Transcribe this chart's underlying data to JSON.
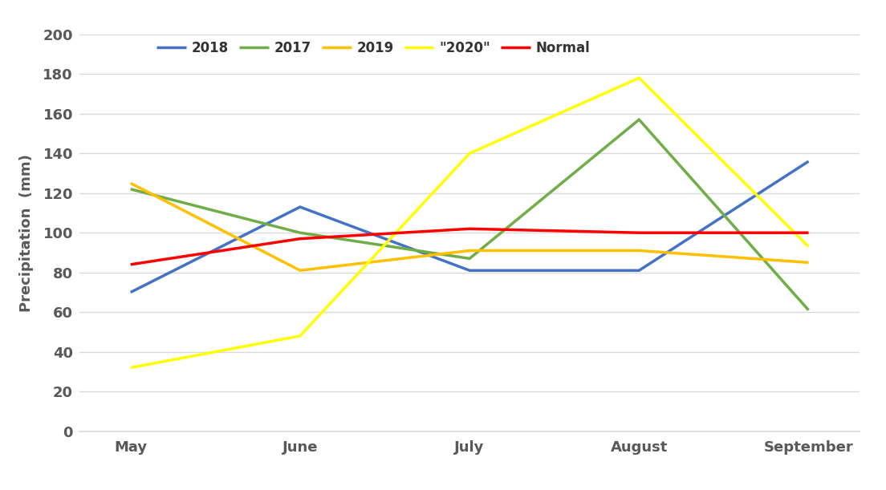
{
  "months": [
    "May",
    "June",
    "July",
    "August",
    "September"
  ],
  "series": {
    "2018": {
      "values": [
        70,
        113,
        81,
        81,
        136
      ],
      "color": "#4472C4",
      "linewidth": 2.5
    },
    "2017": {
      "values": [
        122,
        100,
        87,
        157,
        61
      ],
      "color": "#70AD47",
      "linewidth": 2.5
    },
    "2019": {
      "values": [
        125,
        81,
        91,
        91,
        85
      ],
      "color": "#FFC000",
      "linewidth": 2.5
    },
    "\"2020\"": {
      "values": [
        32,
        48,
        140,
        178,
        93
      ],
      "color": "#FFFF00",
      "linewidth": 2.5
    },
    "Normal": {
      "values": [
        84,
        97,
        102,
        100,
        100
      ],
      "color": "#FF0000",
      "linewidth": 2.5
    }
  },
  "legend_order": [
    "2018",
    "2017",
    "2019",
    "\"2020\"",
    "Normal"
  ],
  "ylabel": "Precipitation  (mm)",
  "ylim": [
    0,
    200
  ],
  "yticks": [
    0,
    20,
    40,
    60,
    80,
    100,
    120,
    140,
    160,
    180,
    200
  ],
  "background_color": "#FFFFFF",
  "plot_background": "#FFFFFF",
  "grid_color": "#D9D9D9",
  "tick_color": "#595959",
  "spine_color": "#D9D9D9",
  "axis_fontsize": 13,
  "tick_fontsize": 13,
  "legend_fontsize": 12
}
